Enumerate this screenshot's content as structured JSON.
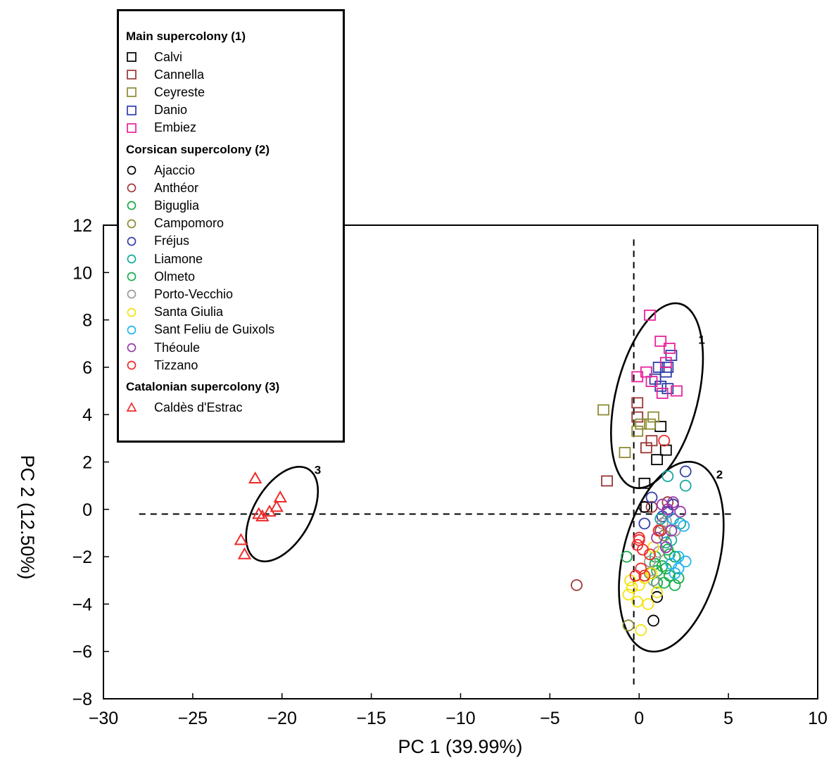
{
  "chart_data": {
    "type": "scatter",
    "xlabel": "PC 1 (39.99%)",
    "ylabel": "PC 2 (12.50%)",
    "xlim": [
      -30,
      10
    ],
    "ylim": [
      -8,
      12
    ],
    "xticks": [
      "−30",
      "−25",
      "−20",
      "−15",
      "−10",
      "−5",
      "0",
      "5",
      "10"
    ],
    "yticks": [
      "−8",
      "−6",
      "−4",
      "−2",
      "0",
      "2",
      "4",
      "6",
      "8",
      "10",
      "12"
    ],
    "grid": false,
    "legend_position": "top-left",
    "legend_groups": [
      {
        "title": "Main supercolony (1)",
        "entries": [
          {
            "name": "Calvi",
            "marker": "square",
            "color": "#000000"
          },
          {
            "name": "Cannella",
            "marker": "square",
            "color": "#9b3535"
          },
          {
            "name": "Ceyreste",
            "marker": "square",
            "color": "#8e8c32"
          },
          {
            "name": "Danio",
            "marker": "square",
            "color": "#2e3ea8"
          },
          {
            "name": "Embiez",
            "marker": "square",
            "color": "#e8239a"
          }
        ]
      },
      {
        "title": "Corsican supercolony (2)",
        "entries": [
          {
            "name": "Ajaccio",
            "marker": "circle",
            "color": "#000000"
          },
          {
            "name": "Anthéor",
            "marker": "circle",
            "color": "#a13a3a"
          },
          {
            "name": "Biguglia",
            "marker": "circle",
            "color": "#19a84a"
          },
          {
            "name": "Campomoro",
            "marker": "circle",
            "color": "#8c8a35"
          },
          {
            "name": "Fréjus",
            "marker": "circle",
            "color": "#3340a8"
          },
          {
            "name": "Liamone",
            "marker": "circle",
            "color": "#14a8a0"
          },
          {
            "name": "Olmeto",
            "marker": "circle",
            "color": "#1bb04d"
          },
          {
            "name": "Porto-Vecchio",
            "marker": "circle",
            "color": "#9a9a9a"
          },
          {
            "name": "Santa Giulia",
            "marker": "circle",
            "color": "#f2e310"
          },
          {
            "name": "Sant Feliu de Guixols",
            "marker": "circle",
            "color": "#20b4ee"
          },
          {
            "name": "Théoule",
            "marker": "circle",
            "color": "#9a3aaa"
          },
          {
            "name": "Tizzano",
            "marker": "circle",
            "color": "#ee2a2a"
          }
        ]
      },
      {
        "title": "Catalonian supercolony (3)",
        "entries": [
          {
            "name": "Caldès d'Estrac",
            "marker": "triangle",
            "color": "#ee2a2a"
          }
        ]
      }
    ],
    "cluster_labels": [
      {
        "text": "1",
        "x": 3.5,
        "y": 7.0
      },
      {
        "text": "2",
        "x": 4.5,
        "y": 1.3
      },
      {
        "text": "3",
        "x": -18.0,
        "y": 1.5
      }
    ],
    "ellipses": [
      {
        "cluster": "1",
        "cx": 1.0,
        "cy": 4.8,
        "rx": 2.3,
        "ry": 4.0,
        "angle_deg": 14
      },
      {
        "cluster": "2",
        "cx": 1.8,
        "cy": -2.0,
        "rx": 2.7,
        "ry": 4.1,
        "angle_deg": 14
      },
      {
        "cluster": "3",
        "cx": -20.0,
        "cy": -0.2,
        "rx": 1.6,
        "ry": 2.2,
        "angle_deg": 30
      }
    ],
    "reference_lines": {
      "vertical_x": -0.3,
      "horizontal_y": -0.2
    },
    "series": [
      {
        "name": "Calvi",
        "marker": "square",
        "color": "#000000",
        "x": [
          1.2,
          1.5,
          1.0,
          0.3,
          0.4
        ],
        "y": [
          3.5,
          2.5,
          2.1,
          1.1,
          0.1
        ]
      },
      {
        "name": "Cannella",
        "marker": "square",
        "color": "#9b3535",
        "x": [
          -0.1,
          -0.1,
          0.4,
          0.7,
          -1.8
        ],
        "y": [
          4.5,
          3.9,
          2.6,
          2.9,
          1.2
        ]
      },
      {
        "name": "Ceyreste",
        "marker": "square",
        "color": "#8e8c32",
        "x": [
          -2.0,
          0.8,
          0.1,
          -0.1,
          -0.8,
          0.6
        ],
        "y": [
          4.2,
          3.9,
          3.6,
          3.3,
          2.4,
          3.6
        ]
      },
      {
        "name": "Danio",
        "marker": "square",
        "color": "#2e3ea8",
        "x": [
          1.8,
          1.6,
          1.1,
          1.5,
          1.2,
          1.6,
          0.9
        ],
        "y": [
          6.5,
          6.0,
          6.0,
          5.8,
          5.2,
          5.1,
          5.5
        ]
      },
      {
        "name": "Embiez",
        "marker": "square",
        "color": "#e8239a",
        "x": [
          0.6,
          1.2,
          1.7,
          1.5,
          0.4,
          -0.1,
          0.7,
          2.1,
          1.3
        ],
        "y": [
          8.2,
          7.1,
          6.8,
          6.2,
          5.8,
          5.6,
          5.4,
          5.0,
          4.9
        ]
      },
      {
        "name": "Ajaccio",
        "marker": "circle",
        "color": "#000000",
        "x": [
          1.0,
          0.8,
          0.3
        ],
        "y": [
          -3.7,
          -4.7,
          0.1
        ]
      },
      {
        "name": "Anthéor",
        "marker": "circle",
        "color": "#a13a3a",
        "x": [
          -3.5,
          1.6,
          1.2,
          0.7
        ],
        "y": [
          -3.2,
          0.3,
          -0.9,
          0.1
        ]
      },
      {
        "name": "Biguglia",
        "marker": "circle",
        "color": "#19a84a",
        "x": [
          -0.7,
          1.5,
          2.0,
          1.0,
          1.7,
          0.9,
          2.2
        ],
        "y": [
          -2.0,
          -2.5,
          -2.0,
          -3.1,
          -1.9,
          -2.3,
          -2.9
        ]
      },
      {
        "name": "Campomoro",
        "marker": "circle",
        "color": "#8c8a35",
        "x": [
          -0.6,
          0.6,
          1.4
        ],
        "y": [
          -4.9,
          -2.7,
          -1.1
        ]
      },
      {
        "name": "Fréjus",
        "marker": "circle",
        "color": "#3340a8",
        "x": [
          2.6,
          0.7,
          0.3,
          1.6,
          1.3,
          1.9
        ],
        "y": [
          1.6,
          0.5,
          -0.6,
          -0.1,
          -0.3,
          0.2
        ]
      },
      {
        "name": "Liamone",
        "marker": "circle",
        "color": "#14a8a0",
        "x": [
          1.6,
          2.6,
          1.8,
          1.2,
          2.3,
          1.5
        ],
        "y": [
          1.4,
          1.0,
          -1.3,
          -0.4,
          -0.6,
          -1.4
        ]
      },
      {
        "name": "Olmeto",
        "marker": "circle",
        "color": "#1bb04d",
        "x": [
          0.9,
          1.3,
          1.7,
          1.4,
          2.0,
          1.0,
          1.6
        ],
        "y": [
          -2.0,
          -2.4,
          -2.8,
          -3.1,
          -3.2,
          -2.6,
          -1.7
        ]
      },
      {
        "name": "Porto-Vecchio",
        "marker": "circle",
        "color": "#9a9a9a",
        "x": [
          1.5,
          1.1,
          0.6,
          2.0,
          1.3,
          0.8
        ],
        "y": [
          -0.5,
          -1.8,
          -2.2,
          -0.9,
          -0.6,
          -3.0
        ]
      },
      {
        "name": "Santa Giulia",
        "marker": "circle",
        "color": "#f2e310",
        "x": [
          0.1,
          -0.6,
          -0.1,
          0.5,
          1.0,
          0.3,
          -0.4,
          0.7,
          -0.5,
          0.0,
          0.8
        ],
        "y": [
          -5.1,
          -3.6,
          -3.9,
          -4.0,
          -3.5,
          -2.9,
          -3.3,
          -2.7,
          -3.0,
          -3.2,
          -1.6
        ]
      },
      {
        "name": "Sant Feliu de Guixols",
        "marker": "circle",
        "color": "#20b4ee",
        "x": [
          2.5,
          1.9,
          2.2,
          1.8,
          2.6,
          2.2,
          2.0
        ],
        "y": [
          -0.7,
          -0.4,
          -2.0,
          -2.3,
          -2.2,
          -2.5,
          -2.7
        ]
      },
      {
        "name": "Théoule",
        "marker": "circle",
        "color": "#9a3aaa",
        "x": [
          1.3,
          1.9,
          1.8,
          1.5,
          2.3,
          1.6,
          1.0
        ],
        "y": [
          0.2,
          0.3,
          -0.9,
          -1.6,
          -0.1,
          0.0,
          -1.2
        ]
      },
      {
        "name": "Tizzano",
        "marker": "circle",
        "color": "#ee2a2a",
        "x": [
          1.4,
          0.0,
          -0.1,
          0.2,
          0.6,
          0.1,
          0.3,
          1.1,
          -0.2,
          0.0
        ],
        "y": [
          2.9,
          -1.2,
          -1.5,
          -1.7,
          -1.9,
          -2.5,
          -2.8,
          -0.9,
          -2.8,
          -1.3
        ]
      },
      {
        "name": "Caldès d'Estrac",
        "marker": "triangle",
        "color": "#ee2a2a",
        "x": [
          -21.5,
          -20.1,
          -20.3,
          -20.7,
          -21.1,
          -21.3,
          -22.3,
          -22.1
        ],
        "y": [
          1.3,
          0.5,
          0.1,
          -0.1,
          -0.3,
          -0.2,
          -1.3,
          -1.9
        ]
      }
    ]
  }
}
